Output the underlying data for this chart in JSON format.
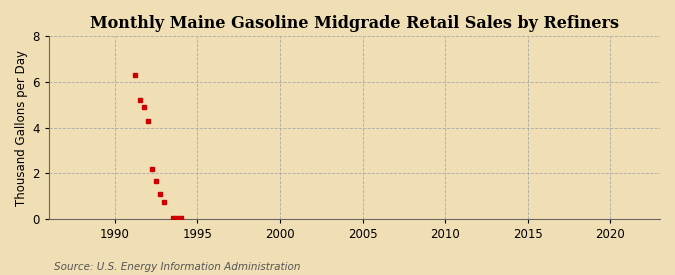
{
  "title": "Monthly Maine Gasoline Midgrade Retail Sales by Refiners",
  "ylabel": "Thousand Gallons per Day",
  "source": "Source: U.S. Energy Information Administration",
  "background_color": "#f0deb4",
  "plot_background_color": "#f0deb4",
  "grid_color": "#aaaaaa",
  "point_color": "#cc0000",
  "xlim": [
    1986,
    2023
  ],
  "ylim": [
    0,
    8
  ],
  "xticks": [
    1990,
    1995,
    2000,
    2005,
    2010,
    2015,
    2020
  ],
  "yticks": [
    0,
    2,
    4,
    6,
    8
  ],
  "data_x": [
    1991.25,
    1991.5,
    1991.75,
    1992.0,
    1992.25,
    1992.5,
    1992.75,
    1993.0,
    1993.5,
    1993.75,
    1994.0
  ],
  "data_y": [
    6.3,
    5.2,
    4.9,
    4.3,
    2.2,
    1.65,
    1.1,
    0.75,
    0.05,
    0.05,
    0.05
  ],
  "title_fontsize": 11.5,
  "label_fontsize": 8.5,
  "tick_fontsize": 8.5,
  "source_fontsize": 7.5
}
